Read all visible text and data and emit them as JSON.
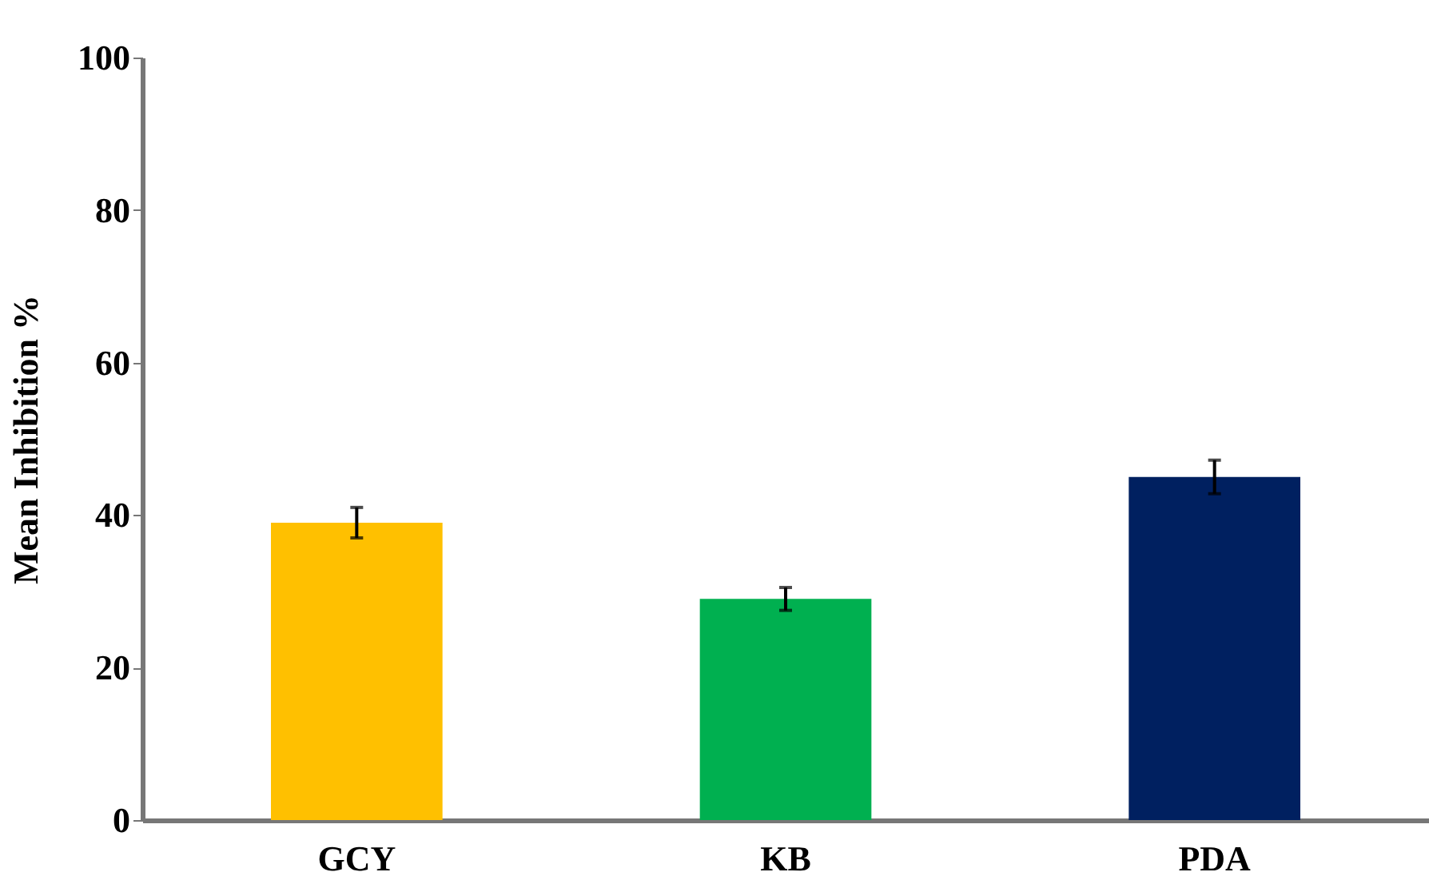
{
  "chart_data": {
    "type": "bar",
    "ylabel": "Mean Inhibition  %",
    "categories": [
      "GCY",
      "KB",
      "PDA"
    ],
    "values": [
      39,
      29,
      45
    ],
    "colors": [
      "#ffc000",
      "#00b050",
      "#002060"
    ],
    "errors": [
      2,
      1.5,
      2.2
    ],
    "ylim": [
      0,
      100
    ],
    "yticks": [
      0,
      20,
      40,
      60,
      80,
      100
    ],
    "grid": false
  }
}
